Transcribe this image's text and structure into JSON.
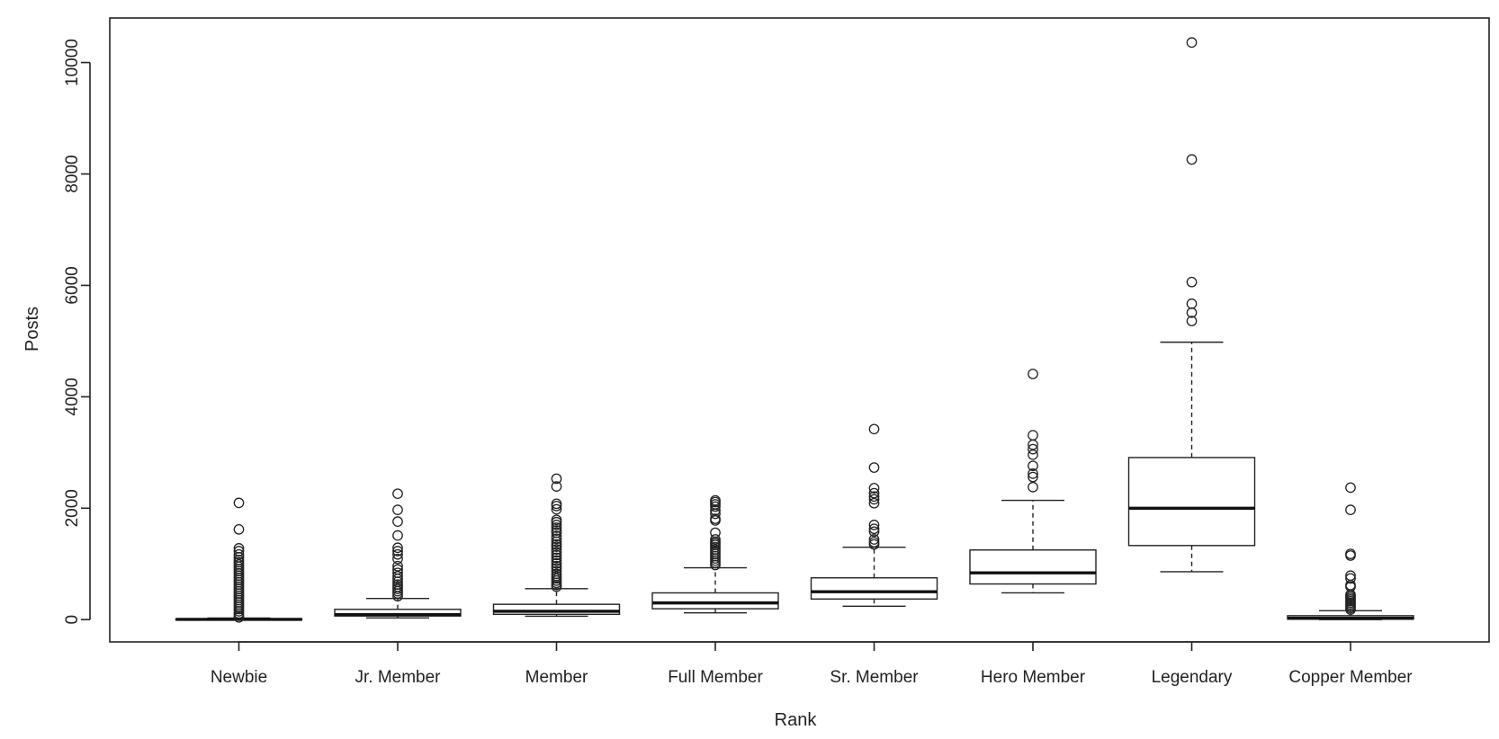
{
  "chart_data": {
    "type": "box",
    "xlabel": "Rank",
    "ylabel": "Posts",
    "ylim": [
      -400,
      10800
    ],
    "yticks": [
      0,
      2000,
      4000,
      6000,
      8000,
      10000
    ],
    "ytick_labels": [
      "0",
      "2000",
      "4000",
      "6000",
      "8000",
      "10000"
    ],
    "grid": false,
    "legend": "none",
    "categories": [
      "Newbie",
      "Jr. Member",
      "Member",
      "Full Member",
      "Sr. Member",
      "Hero Member",
      "Legendary",
      "Copper Member"
    ],
    "boxes": [
      {
        "category": "Newbie",
        "whisker_low": 0,
        "q1": 1,
        "median": 4,
        "q3": 12,
        "whisker_high": 29,
        "outliers": [
          2095,
          1620,
          1280,
          1230,
          1170,
          1120,
          1070,
          1030,
          990,
          950,
          910,
          870,
          830,
          790,
          750,
          710,
          670,
          630,
          590,
          550,
          510,
          470,
          430,
          390,
          350,
          310,
          270,
          230,
          190,
          150,
          110,
          70,
          40
        ]
      },
      {
        "category": "Jr. Member",
        "whisker_low": 31,
        "q1": 65,
        "median": 90,
        "q3": 185,
        "whisker_high": 380,
        "outliers": [
          2260,
          1970,
          1760,
          1510,
          1290,
          1230,
          1170,
          1090,
          960,
          900,
          840,
          780,
          730,
          680,
          630,
          590,
          550,
          510,
          470,
          420
        ]
      },
      {
        "category": "Member",
        "whisker_low": 61,
        "q1": 95,
        "median": 150,
        "q3": 275,
        "whisker_high": 555,
        "outliers": [
          2530,
          2390,
          2080,
          2040,
          1980,
          1790,
          1750,
          1700,
          1650,
          1600,
          1560,
          1500,
          1450,
          1400,
          1350,
          1310,
          1260,
          1210,
          1160,
          1110,
          1060,
          1010,
          960,
          920,
          870,
          820,
          780,
          740,
          700,
          660,
          620,
          590
        ]
      },
      {
        "category": "Full Member",
        "whisker_low": 121,
        "q1": 195,
        "median": 300,
        "q3": 480,
        "whisker_high": 930,
        "outliers": [
          2140,
          2110,
          2070,
          2030,
          1960,
          1900,
          1810,
          1780,
          1560,
          1440,
          1400,
          1370,
          1340,
          1300,
          1260,
          1220,
          1180,
          1140,
          1100,
          1060,
          1020,
          980
        ]
      },
      {
        "category": "Sr. Member",
        "whisker_low": 241,
        "q1": 370,
        "median": 500,
        "q3": 750,
        "whisker_high": 1300,
        "outliers": [
          3420,
          2730,
          2360,
          2270,
          2210,
          2160,
          2090,
          1700,
          1630,
          1580,
          1440,
          1390,
          1350
        ]
      },
      {
        "category": "Hero Member",
        "whisker_low": 481,
        "q1": 640,
        "median": 840,
        "q3": 1250,
        "whisker_high": 2140,
        "outliers": [
          4410,
          3310,
          3140,
          3060,
          2960,
          2760,
          2620,
          2560,
          2380
        ]
      },
      {
        "category": "Legendary",
        "whisker_low": 860,
        "q1": 1330,
        "median": 2000,
        "q3": 2910,
        "whisker_high": 4980,
        "outliers": [
          10360,
          8260,
          6060,
          5670,
          5510,
          5360
        ]
      },
      {
        "category": "Copper Member",
        "whisker_low": 0,
        "q1": 8,
        "median": 25,
        "q3": 70,
        "whisker_high": 160,
        "outliers": [
          2370,
          1970,
          1180,
          1150,
          790,
          740,
          620,
          590,
          450,
          420,
          390,
          360,
          330,
          300,
          270,
          240,
          210,
          180
        ]
      }
    ]
  }
}
